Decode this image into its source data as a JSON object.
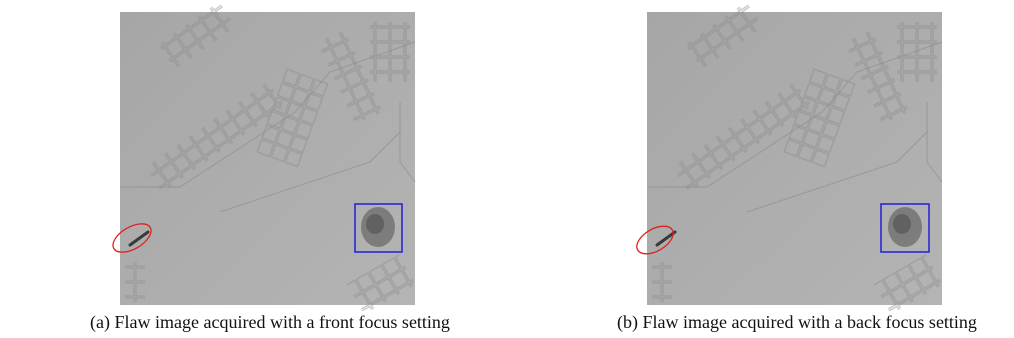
{
  "panels": [
    {
      "caption": "(a) Flaw image acquired with a front focus setting"
    },
    {
      "caption": "(b) Flaw image acquired with a back focus setting"
    }
  ]
}
